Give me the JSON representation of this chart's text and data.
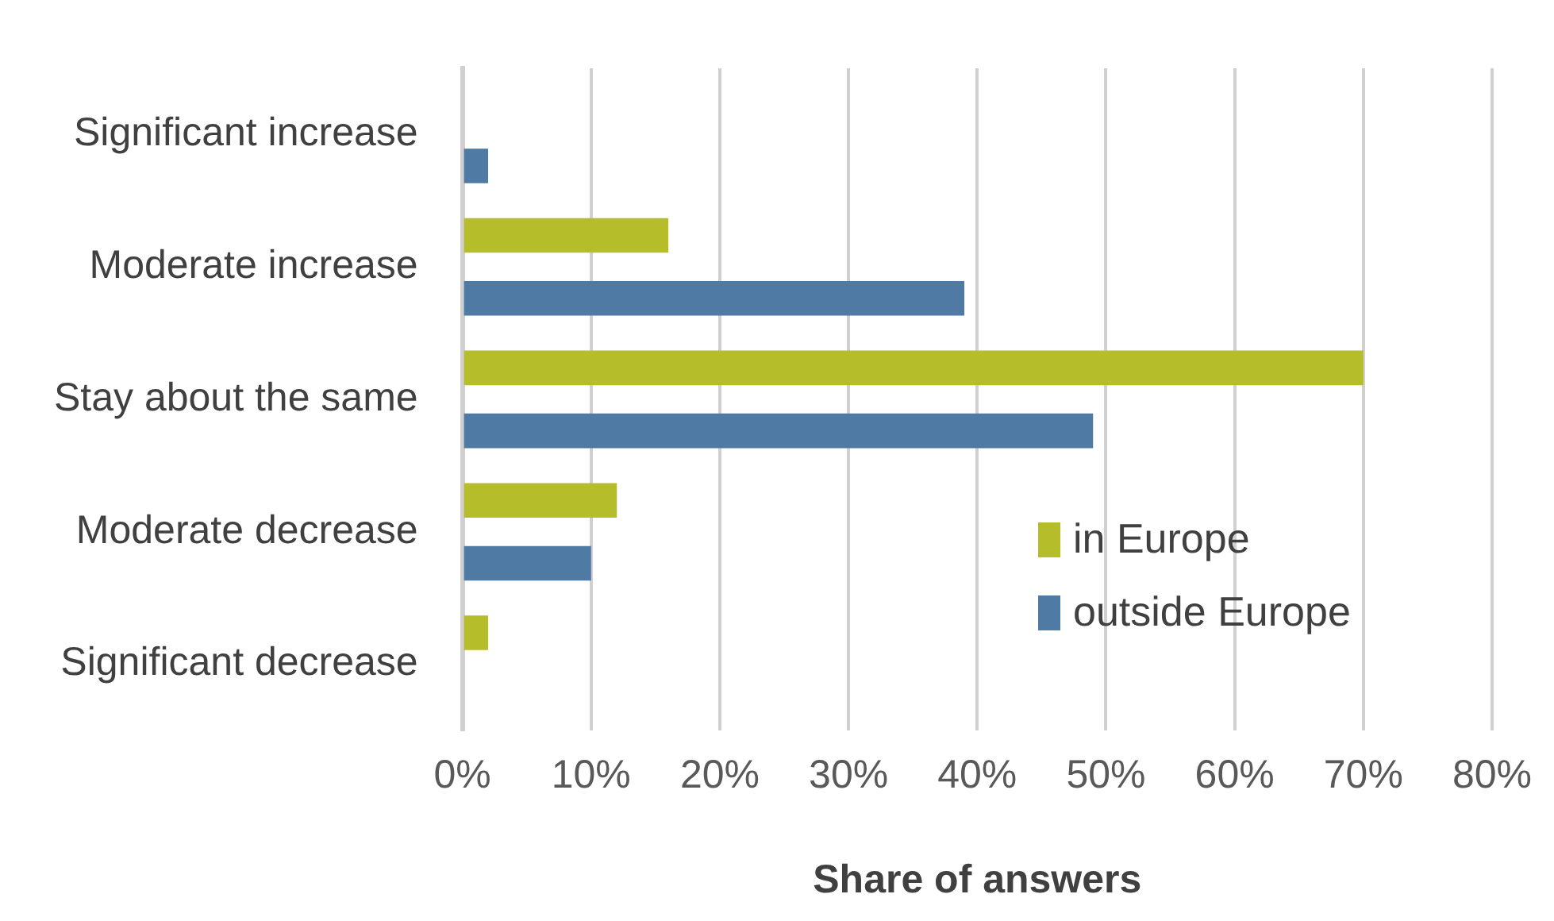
{
  "chart_data": {
    "type": "bar",
    "orientation": "horizontal",
    "xlabel": "Share of answers",
    "categories": [
      "Significant increase",
      "Moderate increase",
      "Stay about the same",
      "Moderate decrease",
      "Significant decrease"
    ],
    "series": [
      {
        "name": "in Europe",
        "color": "#b5bd2a",
        "values": [
          null,
          16,
          70,
          12,
          2
        ]
      },
      {
        "name": "outside Europe",
        "color": "#4f7aa3",
        "values": [
          2,
          39,
          49,
          10,
          null
        ]
      }
    ],
    "xlim": [
      0,
      80
    ],
    "xticks": [
      {
        "value": 0,
        "label": "0%"
      },
      {
        "value": 10,
        "label": "10%"
      },
      {
        "value": 20,
        "label": "20%"
      },
      {
        "value": 30,
        "label": "30%"
      },
      {
        "value": 40,
        "label": "40%"
      },
      {
        "value": 50,
        "label": "50%"
      },
      {
        "value": 60,
        "label": "60%"
      },
      {
        "value": 70,
        "label": "70%"
      },
      {
        "value": 80,
        "label": "80%"
      }
    ],
    "grid": "x",
    "legend": "bottom right"
  }
}
